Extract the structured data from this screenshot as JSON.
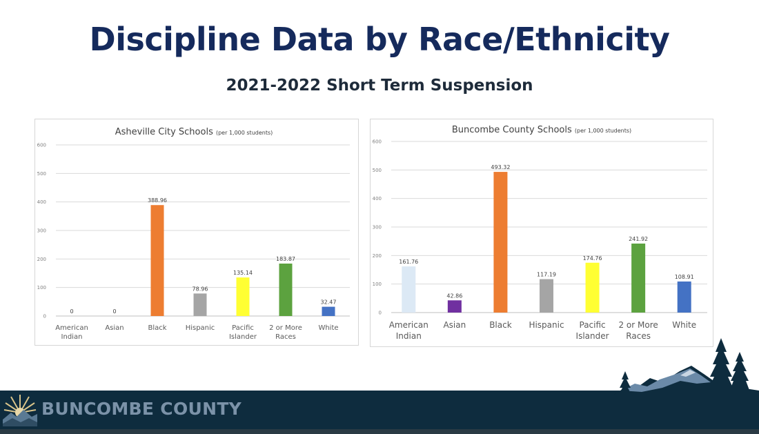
{
  "slide": {
    "title": "Discipline Data by Race/Ethnicity",
    "subtitle": "2021-2022 Short Term Suspension"
  },
  "footer": {
    "brand": "BUNCOMBE COUNTY",
    "colors": {
      "band": "#0e2c3e",
      "brand_text": "#7b92a8"
    }
  },
  "chart_data": [
    {
      "type": "bar",
      "title": "Asheville City Schools",
      "title_note": "(per 1,000 students)",
      "categories": [
        "American Indian",
        "Asian",
        "Black",
        "Hispanic",
        "Pacific Islander",
        "2 or More Races",
        "White"
      ],
      "category_lines": [
        [
          "American",
          "Indian"
        ],
        [
          "Asian"
        ],
        [
          "Black"
        ],
        [
          "Hispanic"
        ],
        [
          "Pacific",
          "Islander"
        ],
        [
          "2 or More",
          "Races"
        ],
        [
          "White"
        ]
      ],
      "values": [
        0,
        0,
        388.96,
        78.96,
        135.14,
        183.87,
        32.47
      ],
      "labels": [
        "0",
        "0",
        "388.96",
        "78.96",
        "135.14",
        "183.87",
        "32.47"
      ],
      "colors": [
        "#dce9f5",
        "#6a2a9a",
        "#ed7d31",
        "#a5a5a5",
        "#ffff33",
        "#5ca23f",
        "#4472c4"
      ],
      "ylim": [
        0,
        600
      ],
      "yticks": [
        0,
        100,
        200,
        300,
        400,
        500,
        600
      ],
      "grid": true,
      "legend": "none"
    },
    {
      "type": "bar",
      "title": "Buncombe County Schools",
      "title_note": "(per 1,000 students)",
      "categories": [
        "American Indian",
        "Asian",
        "Black",
        "Hispanic",
        "Pacific Islander",
        "2 or More Races",
        "White"
      ],
      "category_lines": [
        [
          "American",
          "Indian"
        ],
        [
          "Asian"
        ],
        [
          "Black"
        ],
        [
          "Hispanic"
        ],
        [
          "Pacific",
          "Islander"
        ],
        [
          "2 or More",
          "Races"
        ],
        [
          "White"
        ]
      ],
      "values": [
        161.76,
        42.86,
        493.32,
        117.19,
        174.76,
        241.92,
        108.91
      ],
      "labels": [
        "161.76",
        "42.86",
        "493.32",
        "117.19",
        "174.76",
        "241.92",
        "108.91"
      ],
      "colors": [
        "#dce9f5",
        "#7030a0",
        "#ed7d31",
        "#a5a5a5",
        "#ffff33",
        "#5ca23f",
        "#4472c4"
      ],
      "ylim": [
        0,
        600
      ],
      "yticks": [
        0,
        100,
        200,
        300,
        400,
        500,
        600
      ],
      "grid": true,
      "legend": "none"
    }
  ]
}
